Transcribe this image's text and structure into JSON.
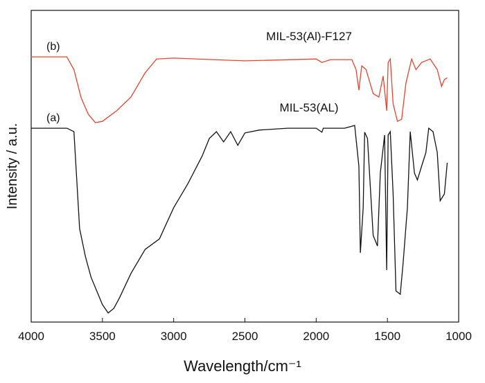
{
  "chart_data": {
    "type": "line",
    "xlabel": "Wavelength/cm⁻¹",
    "ylabel": "Intensity / a.u.",
    "xlim": [
      4000,
      1000
    ],
    "ylim": [
      0,
      100
    ],
    "xticks": [
      4000,
      3500,
      3000,
      2500,
      2000,
      1500,
      1000
    ],
    "series": [
      {
        "name": "(b)",
        "label": "MIL-53(Al)-F127",
        "color": "#e8432c",
        "x": [
          4000,
          3750,
          3700,
          3650,
          3600,
          3550,
          3500,
          3400,
          3300,
          3200,
          3120,
          3000,
          2500,
          2000,
          1960,
          1900,
          1750,
          1720,
          1700,
          1680,
          1650,
          1600,
          1560,
          1530,
          1505,
          1495,
          1480,
          1460,
          1430,
          1400,
          1370,
          1330,
          1300,
          1260,
          1200,
          1150,
          1120,
          1100,
          1080
        ],
        "values": [
          85.1,
          85.1,
          81,
          72,
          66.7,
          64,
          64.4,
          67.8,
          72.2,
          80,
          84.4,
          84.7,
          83.8,
          84.4,
          83.3,
          84.2,
          84.2,
          81,
          74.4,
          82.2,
          81,
          73.3,
          72.2,
          78.9,
          67.8,
          83.3,
          84.4,
          70,
          64.4,
          65.1,
          76.7,
          84.4,
          81,
          83.3,
          84.4,
          81,
          75.6,
          77.8,
          78.4
        ]
      },
      {
        "name": "(a)",
        "label": "MIL-53(AL)",
        "color": "#111111",
        "x": [
          4000,
          3750,
          3700,
          3680,
          3660,
          3620,
          3580,
          3540,
          3500,
          3460,
          3420,
          3380,
          3300,
          3200,
          3100,
          3000,
          2900,
          2800,
          2750,
          2700,
          2650,
          2600,
          2550,
          2500,
          2400,
          2200,
          2000,
          1960,
          1950,
          1800,
          1730,
          1700,
          1690,
          1670,
          1660,
          1640,
          1600,
          1570,
          1550,
          1520,
          1505,
          1495,
          1480,
          1460,
          1440,
          1410,
          1390,
          1360,
          1340,
          1310,
          1290,
          1260,
          1230,
          1210,
          1180,
          1150,
          1130,
          1100,
          1080
        ],
        "values": [
          62.2,
          62.2,
          61.1,
          45.6,
          30,
          21.1,
          14.4,
          10,
          5.6,
          2.9,
          4.4,
          7.8,
          15.6,
          23.3,
          26.7,
          36.7,
          44.4,
          53.3,
          58.9,
          61.1,
          57.8,
          61.1,
          56.7,
          60.7,
          61.6,
          62.2,
          62.2,
          60.9,
          62.2,
          62.2,
          63.1,
          50,
          22.2,
          36.7,
          60.9,
          58.9,
          27.8,
          24.4,
          47.8,
          60,
          16.7,
          60,
          61.1,
          41.1,
          10,
          8.9,
          18.9,
          36.7,
          61.1,
          47.8,
          45.6,
          50,
          54.4,
          62.2,
          61.1,
          54.4,
          38.9,
          41.1,
          51.1
        ]
      }
    ]
  }
}
